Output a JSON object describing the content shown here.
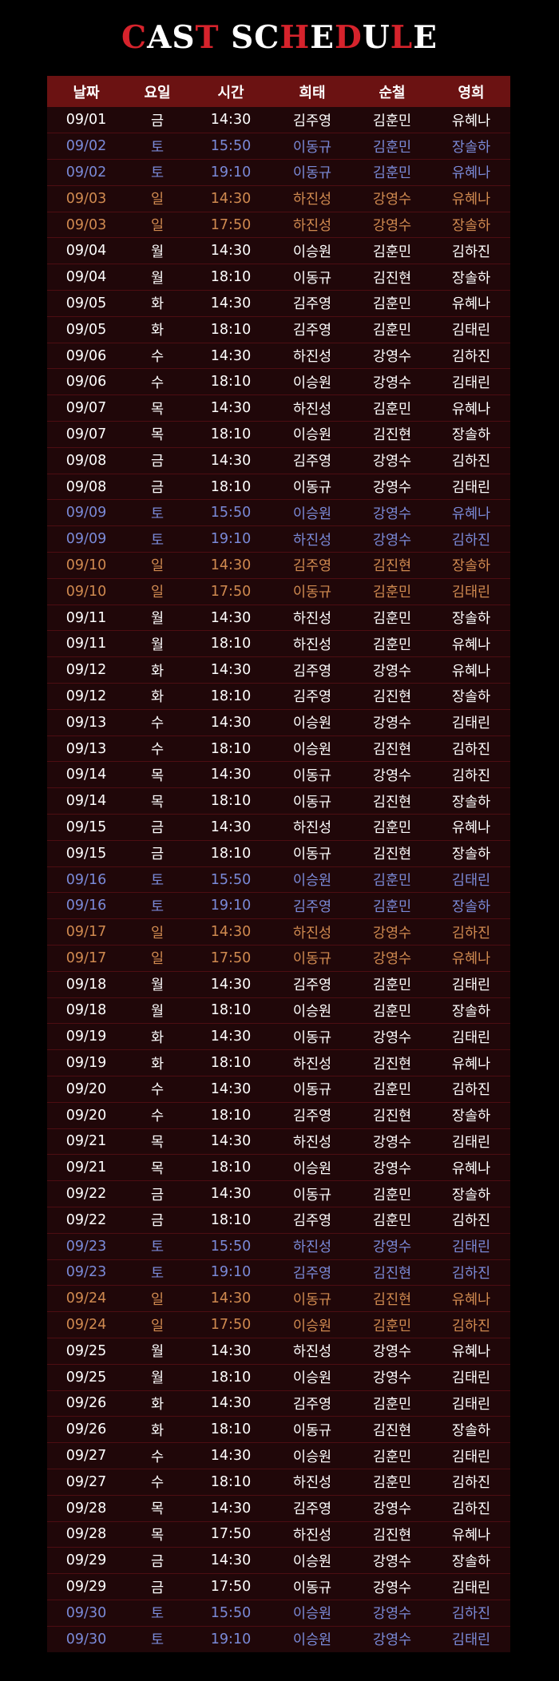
{
  "title": {
    "parts": [
      {
        "text": "C",
        "color": "red"
      },
      {
        "text": "AS",
        "color": "white"
      },
      {
        "text": "T",
        "color": "red"
      },
      {
        "text": " SC",
        "color": "white"
      },
      {
        "text": "H",
        "color": "red"
      },
      {
        "text": "E",
        "color": "white"
      },
      {
        "text": "D",
        "color": "red"
      },
      {
        "text": "U",
        "color": "white"
      },
      {
        "text": "L",
        "color": "red"
      },
      {
        "text": "E",
        "color": "white"
      }
    ]
  },
  "colors": {
    "title_red": "#d6232c",
    "header_bg": "#6b1212",
    "row_bg": "#200709",
    "saturday_text": "#7a8ad8",
    "sunday_text": "#d08a50",
    "weekday_text": "#ffffff"
  },
  "table": {
    "headers": [
      "날짜",
      "요일",
      "시간",
      "희태",
      "순철",
      "영희"
    ],
    "rows": [
      [
        "09/01",
        "금",
        "14:30",
        "김주영",
        "김훈민",
        "유혜나"
      ],
      [
        "09/02",
        "토",
        "15:50",
        "이동규",
        "김훈민",
        "장솔하"
      ],
      [
        "09/02",
        "토",
        "19:10",
        "이동규",
        "김훈민",
        "유혜나"
      ],
      [
        "09/03",
        "일",
        "14:30",
        "하진성",
        "강영수",
        "유혜나"
      ],
      [
        "09/03",
        "일",
        "17:50",
        "하진성",
        "강영수",
        "장솔하"
      ],
      [
        "09/04",
        "월",
        "14:30",
        "이승원",
        "김훈민",
        "김하진"
      ],
      [
        "09/04",
        "월",
        "18:10",
        "이동규",
        "김진현",
        "장솔하"
      ],
      [
        "09/05",
        "화",
        "14:30",
        "김주영",
        "김훈민",
        "유혜나"
      ],
      [
        "09/05",
        "화",
        "18:10",
        "김주영",
        "김훈민",
        "김태린"
      ],
      [
        "09/06",
        "수",
        "14:30",
        "하진성",
        "강영수",
        "김하진"
      ],
      [
        "09/06",
        "수",
        "18:10",
        "이승원",
        "강영수",
        "김태린"
      ],
      [
        "09/07",
        "목",
        "14:30",
        "하진성",
        "김훈민",
        "유혜나"
      ],
      [
        "09/07",
        "목",
        "18:10",
        "이승원",
        "김진현",
        "장솔하"
      ],
      [
        "09/08",
        "금",
        "14:30",
        "김주영",
        "강영수",
        "김하진"
      ],
      [
        "09/08",
        "금",
        "18:10",
        "이동규",
        "강영수",
        "김태린"
      ],
      [
        "09/09",
        "토",
        "15:50",
        "이승원",
        "강영수",
        "유혜나"
      ],
      [
        "09/09",
        "토",
        "19:10",
        "하진성",
        "강영수",
        "김하진"
      ],
      [
        "09/10",
        "일",
        "14:30",
        "김주영",
        "김진현",
        "장솔하"
      ],
      [
        "09/10",
        "일",
        "17:50",
        "이동규",
        "김훈민",
        "김태린"
      ],
      [
        "09/11",
        "월",
        "14:30",
        "하진성",
        "김훈민",
        "장솔하"
      ],
      [
        "09/11",
        "월",
        "18:10",
        "하진성",
        "김훈민",
        "유혜나"
      ],
      [
        "09/12",
        "화",
        "14:30",
        "김주영",
        "강영수",
        "유혜나"
      ],
      [
        "09/12",
        "화",
        "18:10",
        "김주영",
        "김진현",
        "장솔하"
      ],
      [
        "09/13",
        "수",
        "14:30",
        "이승원",
        "강영수",
        "김태린"
      ],
      [
        "09/13",
        "수",
        "18:10",
        "이승원",
        "김진현",
        "김하진"
      ],
      [
        "09/14",
        "목",
        "14:30",
        "이동규",
        "강영수",
        "김하진"
      ],
      [
        "09/14",
        "목",
        "18:10",
        "이동규",
        "김진현",
        "장솔하"
      ],
      [
        "09/15",
        "금",
        "14:30",
        "하진성",
        "김훈민",
        "유혜나"
      ],
      [
        "09/15",
        "금",
        "18:10",
        "이동규",
        "김진현",
        "장솔하"
      ],
      [
        "09/16",
        "토",
        "15:50",
        "이승원",
        "김훈민",
        "김태린"
      ],
      [
        "09/16",
        "토",
        "19:10",
        "김주영",
        "김훈민",
        "장솔하"
      ],
      [
        "09/17",
        "일",
        "14:30",
        "하진성",
        "강영수",
        "김하진"
      ],
      [
        "09/17",
        "일",
        "17:50",
        "이동규",
        "강영수",
        "유혜나"
      ],
      [
        "09/18",
        "월",
        "14:30",
        "김주영",
        "김훈민",
        "김태린"
      ],
      [
        "09/18",
        "월",
        "18:10",
        "이승원",
        "김훈민",
        "장솔하"
      ],
      [
        "09/19",
        "화",
        "14:30",
        "이동규",
        "강영수",
        "김태린"
      ],
      [
        "09/19",
        "화",
        "18:10",
        "하진성",
        "김진현",
        "유혜나"
      ],
      [
        "09/20",
        "수",
        "14:30",
        "이동규",
        "김훈민",
        "김하진"
      ],
      [
        "09/20",
        "수",
        "18:10",
        "김주영",
        "김진현",
        "장솔하"
      ],
      [
        "09/21",
        "목",
        "14:30",
        "하진성",
        "강영수",
        "김태린"
      ],
      [
        "09/21",
        "목",
        "18:10",
        "이승원",
        "강영수",
        "유혜나"
      ],
      [
        "09/22",
        "금",
        "14:30",
        "이동규",
        "김훈민",
        "장솔하"
      ],
      [
        "09/22",
        "금",
        "18:10",
        "김주영",
        "김훈민",
        "김하진"
      ],
      [
        "09/23",
        "토",
        "15:50",
        "하진성",
        "강영수",
        "김태린"
      ],
      [
        "09/23",
        "토",
        "19:10",
        "김주영",
        "김진현",
        "김하진"
      ],
      [
        "09/24",
        "일",
        "14:30",
        "이동규",
        "김진현",
        "유혜나"
      ],
      [
        "09/24",
        "일",
        "17:50",
        "이승원",
        "김훈민",
        "김하진"
      ],
      [
        "09/25",
        "월",
        "14:30",
        "하진성",
        "강영수",
        "유혜나"
      ],
      [
        "09/25",
        "월",
        "18:10",
        "이승원",
        "강영수",
        "김태린"
      ],
      [
        "09/26",
        "화",
        "14:30",
        "김주영",
        "김훈민",
        "김태린"
      ],
      [
        "09/26",
        "화",
        "18:10",
        "이동규",
        "김진현",
        "장솔하"
      ],
      [
        "09/27",
        "수",
        "14:30",
        "이승원",
        "김훈민",
        "김태린"
      ],
      [
        "09/27",
        "수",
        "18:10",
        "하진성",
        "김훈민",
        "김하진"
      ],
      [
        "09/28",
        "목",
        "14:30",
        "김주영",
        "강영수",
        "김하진"
      ],
      [
        "09/28",
        "목",
        "17:50",
        "하진성",
        "김진현",
        "유혜나"
      ],
      [
        "09/29",
        "금",
        "14:30",
        "이승원",
        "강영수",
        "장솔하"
      ],
      [
        "09/29",
        "금",
        "17:50",
        "이동규",
        "강영수",
        "김태린"
      ],
      [
        "09/30",
        "토",
        "15:50",
        "이승원",
        "강영수",
        "김하진"
      ],
      [
        "09/30",
        "토",
        "19:10",
        "이승원",
        "강영수",
        "김태린"
      ]
    ]
  }
}
